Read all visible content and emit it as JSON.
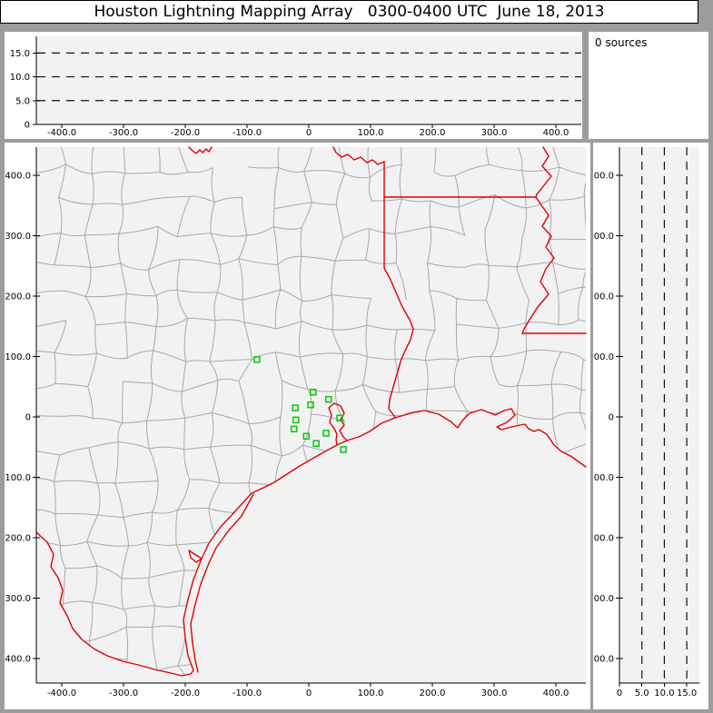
{
  "title": "Houston Lightning Mapping Array   0300-0400 UTC  June 18, 2013",
  "sources_label": "0 sources",
  "colors": {
    "figure_background": "#9c9c9c",
    "panel_background": "#ffffff",
    "plot_background": "#f2f2f2",
    "axis": "#000000",
    "gridline_dashed": "#111111",
    "county_border": "#a8a8a8",
    "state_border": "#e00000",
    "station_marker": "#00cc00"
  },
  "chart_data": [
    {
      "panel": "top-altitude-vs-east-west",
      "type": "scatter",
      "points": [],
      "x_ticks": {
        "values": [
          -400,
          -300,
          -200,
          -100,
          0,
          100,
          200,
          300,
          400
        ],
        "labels": [
          "-400.0",
          "-300.0",
          "-200.0",
          "-100.0",
          "0",
          "100.0",
          "200.0",
          "300.0",
          "400.0"
        ]
      },
      "y_ticks": {
        "values": [
          0,
          5,
          10,
          15
        ],
        "labels": [
          "0",
          "5.0",
          "10.0",
          "15.0"
        ]
      },
      "y_gridlines": [
        5,
        10,
        15
      ],
      "x_range_km": [
        -441,
        441
      ],
      "y_range_km": [
        0,
        18.5
      ],
      "grid": "dashed-horizontal",
      "legend": "none"
    },
    {
      "panel": "plan-view-map",
      "type": "scatter",
      "points": [],
      "x_ticks": {
        "values": [
          -400,
          -300,
          -200,
          -100,
          0,
          100,
          200,
          300,
          400
        ],
        "labels": [
          "-400.0",
          "-300.0",
          "-200.0",
          "-100.0",
          "0",
          "100.0",
          "200.0",
          "300.0",
          "400.0"
        ]
      },
      "y_ticks": {
        "values": [
          400,
          300,
          200,
          100,
          0,
          -100,
          -200,
          -300,
          -400
        ],
        "labels": [
          "400.0",
          "300.0",
          "200.0",
          "100.0",
          "0",
          "-100.0",
          "-200.0",
          "-300.0",
          "-400.0"
        ]
      },
      "x_range_km": [
        -441,
        448
      ],
      "y_range_km": [
        -442,
        447
      ],
      "lma_stations_km": [
        [
          -84,
          95
        ],
        [
          7,
          41
        ],
        [
          32,
          29
        ],
        [
          3,
          20
        ],
        [
          -22,
          15
        ],
        [
          -21,
          -5
        ],
        [
          50,
          -2
        ],
        [
          -24,
          -20
        ],
        [
          -4,
          -32
        ],
        [
          28,
          -27
        ],
        [
          12,
          -44
        ],
        [
          56,
          -54
        ]
      ],
      "map_layers": [
        "county-borders-gray",
        "state-borders-red",
        "gulf-coastline-red",
        "barrier-islands-red"
      ],
      "legend": "none"
    },
    {
      "panel": "right-altitude-vs-north-south",
      "type": "scatter",
      "points": [],
      "x_ticks": {
        "values": [
          0,
          5,
          10,
          15
        ],
        "labels": [
          "0",
          "5.0",
          "10.0",
          "15.0"
        ]
      },
      "y_ticks": {
        "values": [
          400,
          300,
          200,
          100,
          0,
          -100,
          -200,
          -300,
          -400
        ],
        "labels": [
          "400.0",
          "300.0",
          "200.0",
          "100.0",
          "0",
          "-100.0",
          "-200.0",
          "-300.0",
          "-400.0"
        ]
      },
      "x_gridlines": [
        5,
        10,
        15
      ],
      "x_range_km": [
        0,
        17.8
      ],
      "y_range_km": [
        -442,
        447
      ],
      "grid": "dashed-vertical",
      "legend": "none"
    }
  ]
}
